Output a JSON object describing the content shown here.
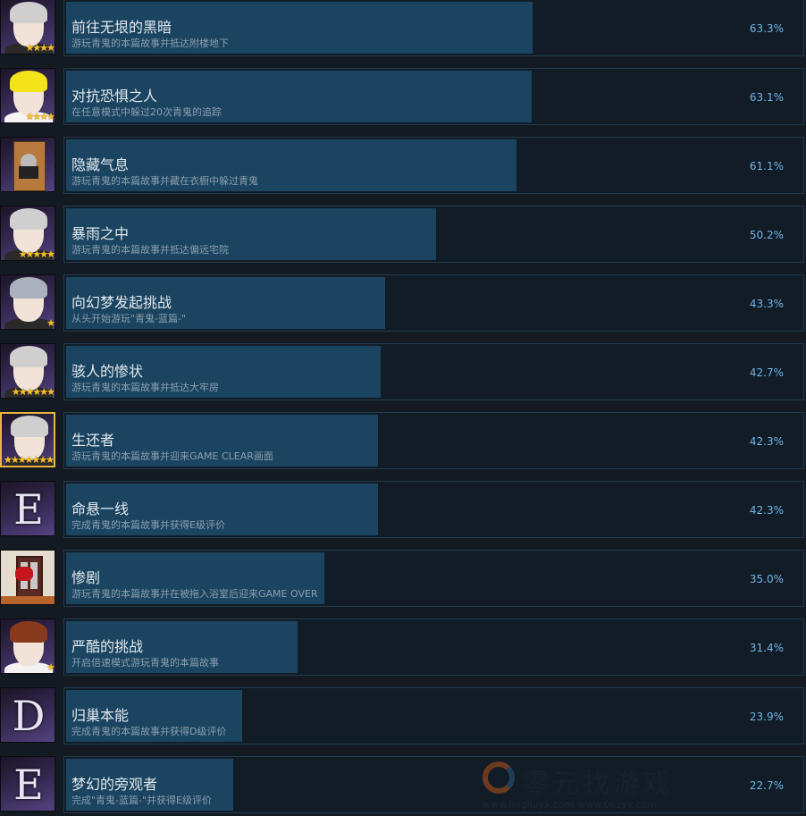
{
  "colors": {
    "background": "#131a22",
    "bar": "#1a4460",
    "percent_text": "#6cb6ea",
    "title_text": "#e2e8ee",
    "desc_text": "#8c9fae",
    "star": "#f6c12a"
  },
  "achievements": [
    {
      "title": "前往无垠的黑暗",
      "desc": "游玩青鬼的本篇故事并抵达附楼地下",
      "percent": "63.3%",
      "value": 63.3,
      "icon": "glasses-man-portrait",
      "stars": 4
    },
    {
      "title": "对抗恐惧之人",
      "desc": "在任意模式中躲过20次青鬼的追踪",
      "percent": "63.1%",
      "value": 63.1,
      "icon": "blonde-man-portrait",
      "stars": 4
    },
    {
      "title": "隐藏气息",
      "desc": "游玩青鬼的本篇故事并藏在衣橱中躲过青鬼",
      "percent": "61.1%",
      "value": 61.1,
      "icon": "wardrobe-hiding",
      "stars": 0
    },
    {
      "title": "暴雨之中",
      "desc": "游玩青鬼的本篇故事并抵达偏远宅院",
      "percent": "50.2%",
      "value": 50.2,
      "icon": "glasses-man-portrait",
      "stars": 5
    },
    {
      "title": "向幻梦发起挑战",
      "desc": "从头开始游玩\"青鬼-蓝篇-\"",
      "percent": "43.3%",
      "value": 43.3,
      "icon": "gray-hair-boy-portrait",
      "stars": 1
    },
    {
      "title": "骇人的惨状",
      "desc": "游玩青鬼的本篇故事并抵达大牢房",
      "percent": "42.7%",
      "value": 42.7,
      "icon": "glasses-man-portrait",
      "stars": 6
    },
    {
      "title": "生还者",
      "desc": "游玩青鬼的本篇故事并迎来GAME CLEAR画面",
      "percent": "42.3%",
      "value": 42.3,
      "icon": "glasses-man-portrait-gold",
      "stars": 7
    },
    {
      "title": "命悬一线",
      "desc": "完成青鬼的本篇故事并获得E级评价",
      "percent": "42.3%",
      "value": 42.3,
      "icon": "letter-e",
      "letter": "E",
      "stars": 0
    },
    {
      "title": "惨剧",
      "desc": "游玩青鬼的本篇故事并在被拖入浴室后迎来GAME OVER",
      "percent": "35.0%",
      "value": 35.0,
      "icon": "bloody-door",
      "stars": 0
    },
    {
      "title": "严酷的挑战",
      "desc": "开启倍速模式游玩青鬼的本篇故事",
      "percent": "31.4%",
      "value": 31.4,
      "icon": "red-hair-portrait",
      "stars": 1
    },
    {
      "title": "归巢本能",
      "desc": "完成青鬼的本篇故事并获得D级评价",
      "percent": "23.9%",
      "value": 23.9,
      "icon": "letter-d",
      "letter": "D",
      "stars": 0
    },
    {
      "title": "梦幻的旁观者",
      "desc": "完成\"青鬼-蓝篇-\"并获得E级评价",
      "percent": "22.7%",
      "value": 22.7,
      "icon": "letter-e",
      "letter": "E",
      "stars": 0
    }
  ],
  "watermark": {
    "text": "零元找游戏",
    "url": "www.lingliuyx.com   www.06zyx.com"
  }
}
